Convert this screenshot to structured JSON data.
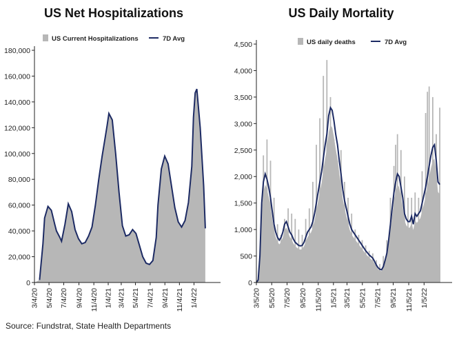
{
  "colors": {
    "area": "#b7b7b7",
    "line": "#1c2a63",
    "axis": "#222222"
  },
  "source": "Source: Fundstrat, State Health Departments",
  "chart_data": [
    {
      "type": "area",
      "title": "US Net Hospitalizations",
      "legend": {
        "area_label": "US Current Hospitalizations",
        "line_label": "7D Avg",
        "placement": "top"
      },
      "xlabel": "",
      "ylabel": "",
      "ylim": [
        0,
        180000
      ],
      "yticks": [
        0,
        20000,
        40000,
        60000,
        80000,
        100000,
        120000,
        140000,
        160000,
        180000
      ],
      "ytick_labels": [
        "0",
        "20,000",
        "40,000",
        "60,000",
        "80,000",
        "100,000",
        "120,000",
        "140,000",
        "160,000",
        "180,000"
      ],
      "xlim": [
        0,
        110
      ],
      "xticks": [
        0,
        8.6,
        17.3,
        26.3,
        35.1,
        43.6,
        51.3,
        59.7,
        68.4,
        77.1,
        85.7,
        94.3
      ],
      "xtick_labels": [
        "3/4/20",
        "5/4/20",
        "7/4/20",
        "9/4/20",
        "11/4/20",
        "1/4/21",
        "3/4/21",
        "5/4/21",
        "7/4/21",
        "9/4/21",
        "11/4/21",
        "1/4/22"
      ],
      "series": [
        {
          "name": "US Current Hospitalizations",
          "kind": "area",
          "x": [
            0,
            3,
            5,
            6,
            8,
            10,
            12,
            13,
            15,
            16,
            18,
            20,
            22,
            24,
            26,
            28,
            30,
            32,
            34,
            36,
            38,
            40,
            42,
            43,
            44,
            46,
            48,
            50,
            52,
            54,
            56,
            58,
            60,
            62,
            64,
            66,
            68,
            70,
            72,
            73,
            75,
            77,
            79,
            81,
            83,
            85,
            87,
            89,
            91,
            93,
            94,
            95,
            96,
            98,
            100,
            101
          ],
          "values": [
            0,
            2000,
            30000,
            50000,
            59000,
            56000,
            45000,
            40000,
            35000,
            32000,
            45000,
            61000,
            55000,
            41000,
            34000,
            30000,
            31000,
            36000,
            43000,
            60000,
            80000,
            98000,
            114000,
            122000,
            131000,
            126000,
            100000,
            70000,
            44000,
            36000,
            37000,
            41000,
            38000,
            29000,
            20000,
            15000,
            14000,
            17000,
            35000,
            60000,
            88000,
            98000,
            92000,
            75000,
            58000,
            47000,
            43000,
            48000,
            62000,
            90000,
            128000,
            147000,
            150000,
            120000,
            75000,
            42000
          ]
        },
        {
          "name": "7D Avg",
          "kind": "line",
          "x": [
            3,
            5,
            6,
            8,
            10,
            12,
            13,
            15,
            16,
            18,
            20,
            22,
            24,
            26,
            28,
            30,
            32,
            34,
            36,
            38,
            40,
            42,
            43,
            44,
            46,
            48,
            50,
            52,
            54,
            56,
            58,
            60,
            62,
            64,
            66,
            68,
            70,
            72,
            73,
            75,
            77,
            79,
            81,
            83,
            85,
            87,
            89,
            91,
            93,
            94,
            95,
            96,
            98,
            100,
            101
          ],
          "values": [
            2000,
            30000,
            50000,
            59000,
            56000,
            45000,
            40000,
            35000,
            32000,
            45000,
            61000,
            55000,
            41000,
            34000,
            30000,
            31000,
            36000,
            43000,
            60000,
            80000,
            98000,
            114000,
            122000,
            131000,
            126000,
            100000,
            70000,
            44000,
            36000,
            37000,
            41000,
            38000,
            29000,
            20000,
            15000,
            14000,
            17000,
            35000,
            60000,
            88000,
            98000,
            92000,
            75000,
            58000,
            47000,
            43000,
            48000,
            62000,
            90000,
            128000,
            147000,
            150000,
            120000,
            75000,
            42000
          ]
        }
      ]
    },
    {
      "type": "bar",
      "title": "US Daily Mortality",
      "legend": {
        "area_label": "US daily deaths",
        "line_label": "7D Avg",
        "placement": "top"
      },
      "xlabel": "",
      "ylabel": "",
      "ylim": [
        0,
        4500
      ],
      "yticks": [
        0,
        500,
        1000,
        1500,
        2000,
        2500,
        3000,
        3500,
        4000,
        4500
      ],
      "ytick_labels": [
        "0",
        "500",
        "1,000",
        "1,500",
        "2,000",
        "2,500",
        "3,000",
        "3,500",
        "4,000",
        "4,500"
      ],
      "xlim": [
        0,
        111
      ],
      "xticks": [
        0,
        8.7,
        17.4,
        26.3,
        35.1,
        43.7,
        51.4,
        60.1,
        68.8,
        77.6,
        86.4,
        95.1
      ],
      "xtick_labels": [
        "3/5/20",
        "5/5/20",
        "7/5/20",
        "9/5/20",
        "11/5/20",
        "1/5/21",
        "3/5/21",
        "5/5/21",
        "7/5/21",
        "9/5/21",
        "11/5/21",
        "1/5/22"
      ],
      "series": [
        {
          "name": "US daily deaths",
          "kind": "bar",
          "x": [
            0,
            3,
            4,
            6,
            8,
            10,
            12,
            14,
            16,
            18,
            20,
            22,
            24,
            26,
            28,
            30,
            32,
            34,
            36,
            38,
            40,
            42,
            44,
            46,
            48,
            50,
            52,
            54,
            56,
            58,
            60,
            62,
            64,
            66,
            68,
            70,
            72,
            74,
            76,
            78,
            79,
            80,
            82,
            84,
            86,
            88,
            90,
            92,
            94,
            96,
            97,
            98,
            100,
            102,
            104
          ],
          "values": [
            0,
            800,
            2400,
            2700,
            2300,
            1600,
            1100,
            900,
            1200,
            1400,
            1300,
            1200,
            1000,
            900,
            1200,
            1400,
            1900,
            2600,
            3100,
            3900,
            4200,
            3500,
            2700,
            2300,
            2500,
            1900,
            1600,
            1300,
            1000,
            900,
            800,
            700,
            600,
            550,
            420,
            350,
            500,
            800,
            1600,
            2200,
            2600,
            2800,
            2500,
            2000,
            1600,
            1600,
            1700,
            1600,
            2100,
            3200,
            3600,
            3700,
            3500,
            2800,
            3300
          ]
        },
        {
          "name": "7D Avg",
          "kind": "line",
          "x": [
            0,
            1,
            2,
            3,
            4,
            5,
            6,
            7,
            8,
            9,
            10,
            11,
            12,
            13,
            14,
            15,
            16,
            17,
            18,
            19,
            20,
            21,
            22,
            23,
            24,
            25,
            26,
            27,
            28,
            29,
            30,
            31,
            32,
            33,
            34,
            35,
            36,
            37,
            38,
            39,
            40,
            41,
            42,
            43,
            44,
            45,
            46,
            47,
            48,
            49,
            50,
            51,
            52,
            53,
            54,
            55,
            56,
            57,
            58,
            59,
            60,
            61,
            62,
            63,
            64,
            65,
            66,
            67,
            68,
            69,
            70,
            71,
            72,
            73,
            74,
            75,
            76,
            77,
            78,
            79,
            80,
            81,
            82,
            83,
            84,
            85,
            86,
            87,
            88,
            89,
            90,
            91,
            92,
            93,
            94,
            95,
            96,
            97,
            98,
            99,
            100,
            101,
            102,
            103,
            104
          ],
          "values": [
            0,
            50,
            500,
            1500,
            1900,
            2050,
            1950,
            1800,
            1600,
            1350,
            1100,
            950,
            850,
            800,
            850,
            950,
            1100,
            1150,
            1050,
            950,
            900,
            820,
            760,
            730,
            700,
            690,
            700,
            760,
            850,
            950,
            1000,
            1050,
            1150,
            1300,
            1500,
            1700,
            1900,
            2100,
            2350,
            2600,
            2800,
            3150,
            3300,
            3250,
            3050,
            2800,
            2600,
            2300,
            2050,
            1750,
            1550,
            1400,
            1250,
            1100,
            1000,
            950,
            900,
            850,
            800,
            750,
            700,
            650,
            600,
            560,
            520,
            490,
            460,
            400,
            330,
            280,
            250,
            240,
            300,
            420,
            550,
            800,
            1100,
            1400,
            1700,
            1900,
            2050,
            2000,
            1800,
            1600,
            1300,
            1200,
            1150,
            1150,
            1250,
            1100,
            1300,
            1250,
            1300,
            1350,
            1500,
            1650,
            1800,
            2000,
            2200,
            2400,
            2550,
            2600,
            2300,
            1900,
            1850
          ]
        }
      ]
    }
  ]
}
